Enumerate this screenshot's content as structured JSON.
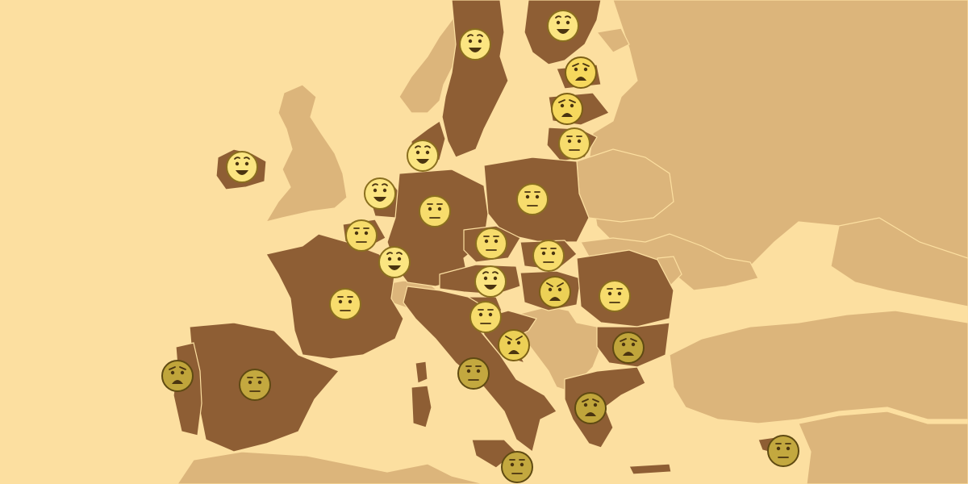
{
  "map": {
    "colors": {
      "sea": "#fcdfa0",
      "non_member": "#dcb57b",
      "member": "#8e5e34",
      "border": "#fcdfa0"
    },
    "moods": {
      "happy": {
        "fill": "#fbe581",
        "stroke": "#8a6f1e"
      },
      "neutral": {
        "fill": "#f7dc6c",
        "stroke": "#8a6f1e"
      },
      "worried": {
        "fill": "#f6d85d",
        "stroke": "#7c6015"
      },
      "angry": {
        "fill": "#ecd056",
        "stroke": "#7c6015"
      },
      "sad_dark": {
        "fill": "#c0a53b",
        "stroke": "#5f4a12"
      },
      "neutral_dark": {
        "fill": "#c3a83f",
        "stroke": "#5f4a12"
      }
    },
    "faces": [
      {
        "id": "face-ireland",
        "mood": "happy"
      },
      {
        "id": "face-sweden",
        "mood": "happy"
      },
      {
        "id": "face-finland",
        "mood": "happy"
      },
      {
        "id": "face-estonia",
        "mood": "worried"
      },
      {
        "id": "face-latvia",
        "mood": "worried"
      },
      {
        "id": "face-lithuania",
        "mood": "neutral"
      },
      {
        "id": "face-denmark",
        "mood": "happy"
      },
      {
        "id": "face-netherlands",
        "mood": "happy"
      },
      {
        "id": "face-belgium",
        "mood": "neutral"
      },
      {
        "id": "face-luxembourg",
        "mood": "happy"
      },
      {
        "id": "face-germany",
        "mood": "neutral"
      },
      {
        "id": "face-poland",
        "mood": "neutral"
      },
      {
        "id": "face-czechia",
        "mood": "neutral"
      },
      {
        "id": "face-slovakia",
        "mood": "neutral"
      },
      {
        "id": "face-austria",
        "mood": "happy"
      },
      {
        "id": "face-hungary",
        "mood": "angry"
      },
      {
        "id": "face-romania",
        "mood": "neutral"
      },
      {
        "id": "face-slovenia",
        "mood": "neutral"
      },
      {
        "id": "face-croatia",
        "mood": "angry"
      },
      {
        "id": "face-bulgaria",
        "mood": "sad_dark"
      },
      {
        "id": "face-france",
        "mood": "neutral"
      },
      {
        "id": "face-spain",
        "mood": "neutral_dark"
      },
      {
        "id": "face-portugal",
        "mood": "sad_dark"
      },
      {
        "id": "face-italy",
        "mood": "neutral_dark"
      },
      {
        "id": "face-greece",
        "mood": "sad_dark"
      },
      {
        "id": "face-malta",
        "mood": "neutral_dark"
      },
      {
        "id": "face-cyprus",
        "mood": "neutral_dark"
      }
    ]
  }
}
